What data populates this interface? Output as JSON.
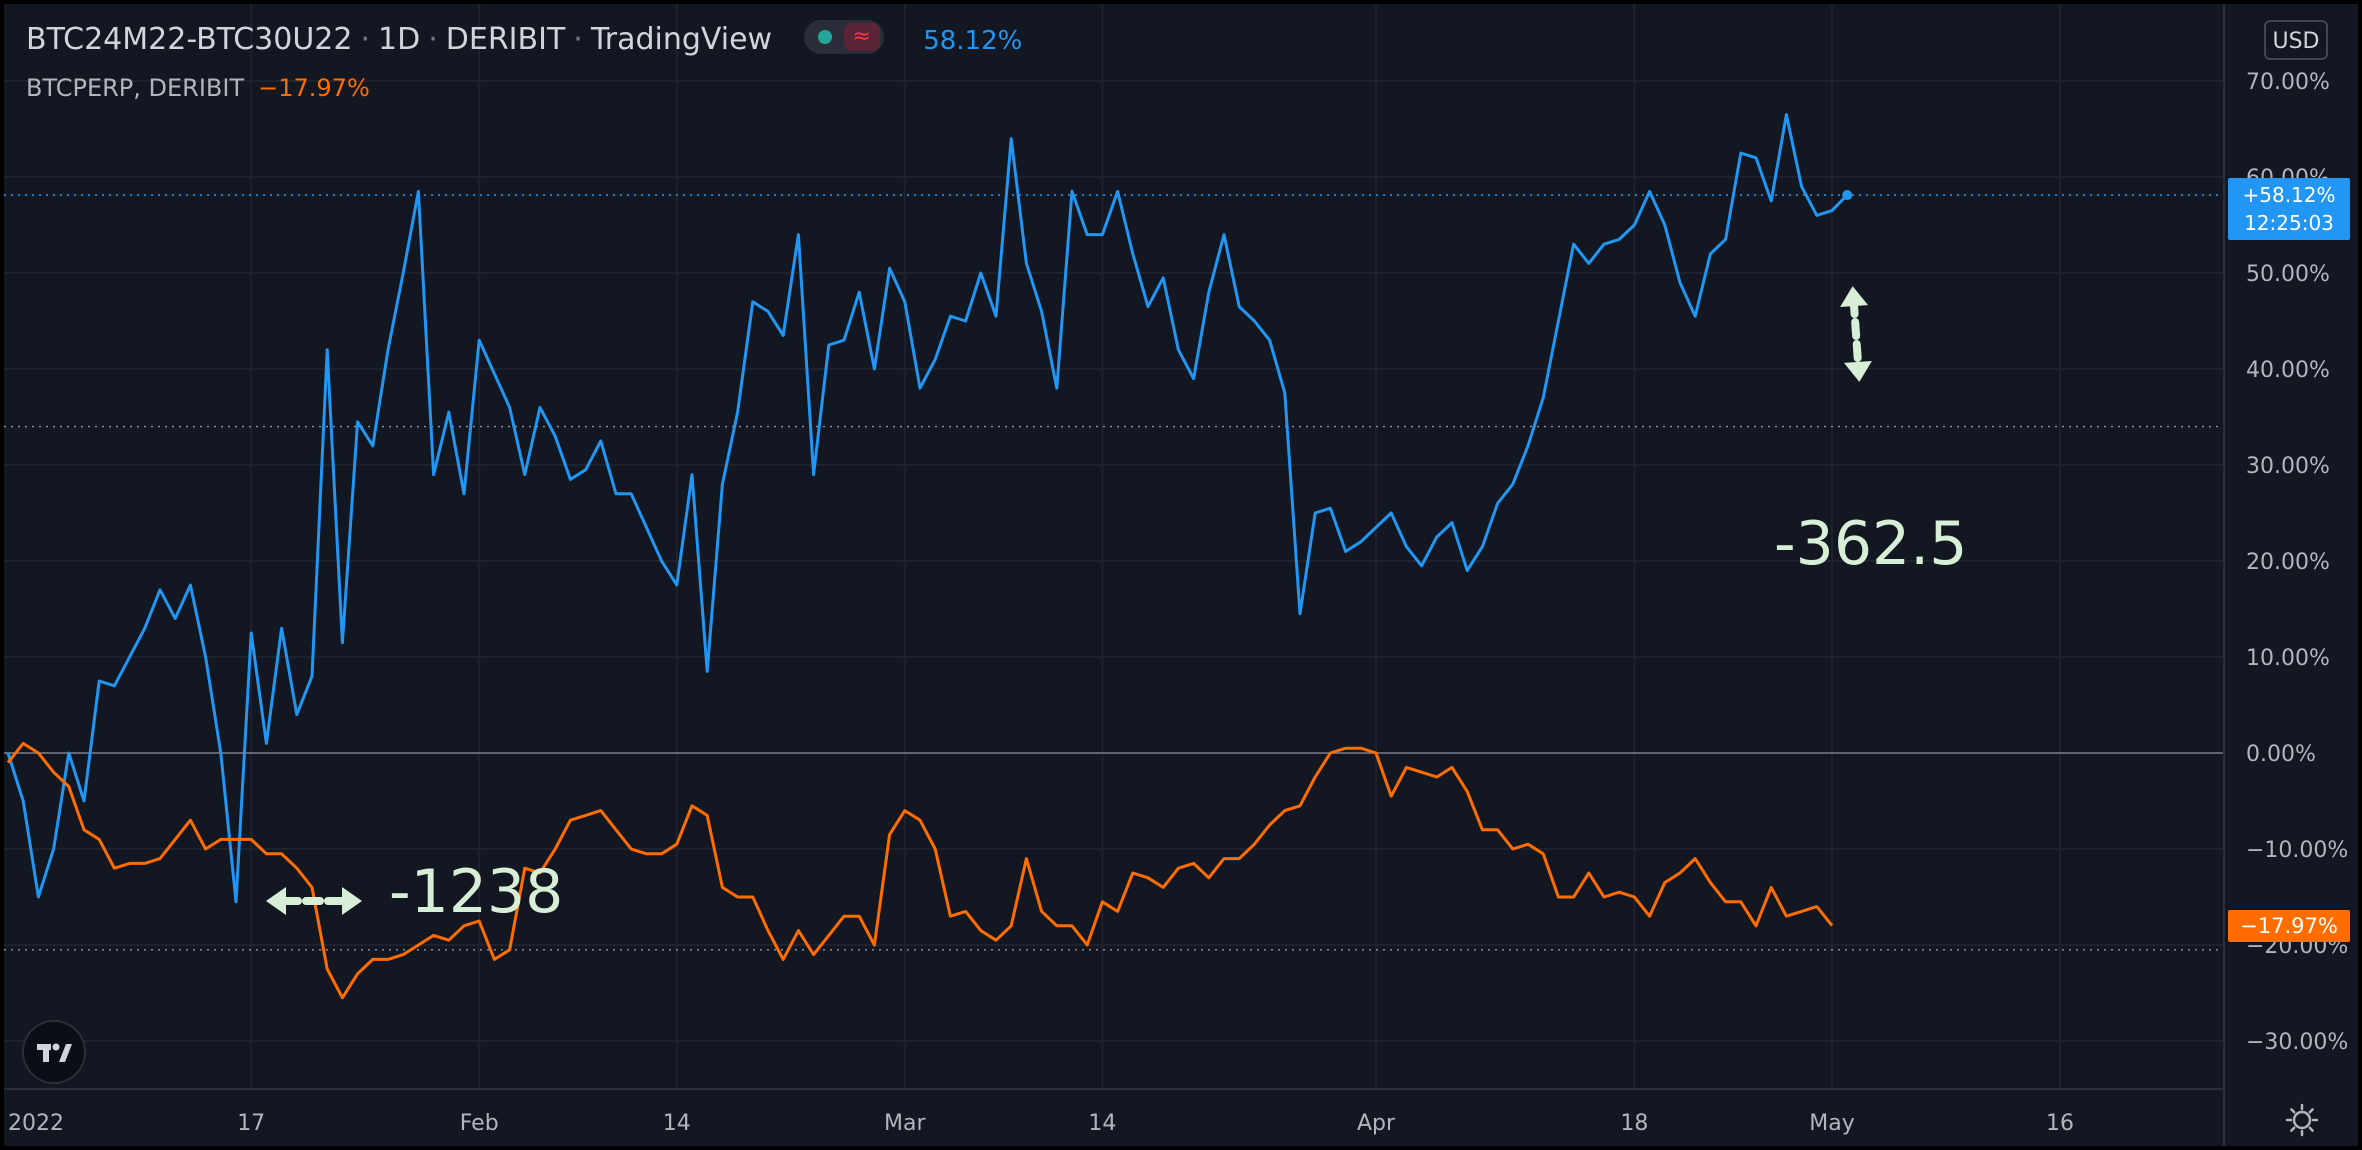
{
  "header": {
    "symbol": "BTC24M22-BTC30U22",
    "interval": "1D",
    "exchange": "DERIBIT",
    "source": "TradingView",
    "main_value": "58.12%",
    "compare_symbol": "BTCPERP, DERIBIT",
    "compare_value": "−17.97%"
  },
  "toolbar": {
    "currency_button": "USD"
  },
  "price_tags": {
    "blue_value": "+58.12%",
    "blue_countdown": "12:25:03",
    "orange_value": "−17.97%"
  },
  "icons": {
    "logo": "tradingview-logo-icon",
    "settings": "gear-icon",
    "toggle": "visibility-toggle-icon"
  },
  "chart_data": {
    "type": "line",
    "y_unit": "%",
    "ylim": [
      -35,
      75
    ],
    "y_ticks": [
      70,
      60,
      50,
      40,
      30,
      20,
      10,
      0,
      -10,
      -20,
      -30
    ],
    "y_tick_labels": [
      "70.00%",
      "60.00%",
      "50.00%",
      "40.00%",
      "30.00%",
      "20.00%",
      "10.00%",
      "0.00%",
      "−10.00%",
      "−20.00%",
      "−30.00%"
    ],
    "x_range": [
      "2022-01-01",
      "2022-05-24"
    ],
    "x_ticks": [
      {
        "date": "2022-01-01",
        "label": "2022"
      },
      {
        "date": "2022-01-17",
        "label": "17"
      },
      {
        "date": "2022-02-01",
        "label": "Feb"
      },
      {
        "date": "2022-02-14",
        "label": "14"
      },
      {
        "date": "2022-03-01",
        "label": "Mar"
      },
      {
        "date": "2022-03-14",
        "label": "14"
      },
      {
        "date": "2022-04-01",
        "label": "Apr"
      },
      {
        "date": "2022-04-18",
        "label": "18"
      },
      {
        "date": "2022-05-01",
        "label": "May"
      },
      {
        "date": "2022-05-16",
        "label": "16"
      }
    ],
    "reference_lines": [
      58.12,
      34,
      0,
      -20.5
    ],
    "series": [
      {
        "color": "#2196f3",
        "start_date": "2022-01-01",
        "values": [
          0,
          -5,
          -15,
          -10,
          0,
          -5,
          7.5,
          7,
          10,
          13,
          17,
          14,
          17.5,
          10,
          0,
          -15.5,
          12.5,
          1,
          13,
          4,
          8,
          42,
          11.5,
          34.5,
          32,
          42,
          50,
          58.5,
          29,
          35.5,
          27,
          43,
          39.5,
          36,
          29,
          36,
          33,
          28.5,
          29.5,
          32.5,
          27,
          27,
          23.5,
          20,
          17.5,
          29,
          8.5,
          28,
          35.5,
          47,
          46,
          43.5,
          54,
          29,
          42.5,
          43,
          48,
          40,
          50.5,
          47,
          38,
          41,
          45.5,
          45,
          50,
          45.5,
          64,
          51,
          46,
          38,
          58.5,
          54,
          54,
          58.5,
          52,
          46.5,
          49.5,
          42,
          39,
          48,
          54,
          46.5,
          45,
          43,
          37.5,
          14.5,
          25,
          25.5,
          21,
          22,
          23.5,
          25,
          21.5,
          19.5,
          22.5,
          24,
          19,
          21.5,
          26,
          28,
          32,
          37,
          45,
          53,
          51,
          53,
          53.5,
          55,
          58.5,
          55,
          49,
          45.5,
          52,
          53.5,
          62.5,
          62,
          57.5,
          66.5,
          59,
          56,
          56.5,
          58.12
        ]
      },
      {
        "color": "#ff6d00",
        "start_date": "2022-01-01",
        "values": [
          -1,
          1,
          0,
          -2,
          -3.5,
          -8,
          -9,
          -12,
          -11.5,
          -11.5,
          -11,
          -9,
          -7,
          -10,
          -9,
          -9,
          -9,
          -10.5,
          -10.5,
          -12,
          -14,
          -22.5,
          -25.5,
          -23,
          -21.5,
          -21.5,
          -21,
          -20,
          -19,
          -19.5,
          -18,
          -17.5,
          -21.5,
          -20.5,
          -12,
          -12.5,
          -10,
          -7,
          -6.5,
          -6,
          -8,
          -10,
          -10.5,
          -10.5,
          -9.5,
          -5.5,
          -6.5,
          -14,
          -15,
          -15,
          -18.5,
          -21.5,
          -18.5,
          -21,
          -19,
          -17,
          -17,
          -20,
          -8.5,
          -6,
          -7,
          -10,
          -17,
          -16.5,
          -18.5,
          -19.5,
          -18,
          -11,
          -16.5,
          -18,
          -18,
          -20,
          -15.5,
          -16.5,
          -12.5,
          -13,
          -14,
          -12,
          -11.5,
          -13,
          -11,
          -11,
          -9.5,
          -7.5,
          -6,
          -5.5,
          -2.5,
          0,
          0.5,
          0.5,
          0,
          -4.5,
          -1.5,
          -2,
          -2.5,
          -1.5,
          -4,
          -8,
          -8,
          -10,
          -9.5,
          -10.5,
          -15,
          -15,
          -12.5,
          -15,
          -14.5,
          -15,
          -17,
          -13.5,
          -12.5,
          -11,
          -13.5,
          -15.5,
          -15.5,
          -18,
          -14,
          -17,
          -16.5,
          -16,
          -17.97
        ]
      }
    ],
    "annotations": [
      {
        "text": "-362.5",
        "arrow": "vertical double-headed"
      },
      {
        "text": "-1238",
        "arrow": "horizontal double-headed"
      }
    ]
  }
}
